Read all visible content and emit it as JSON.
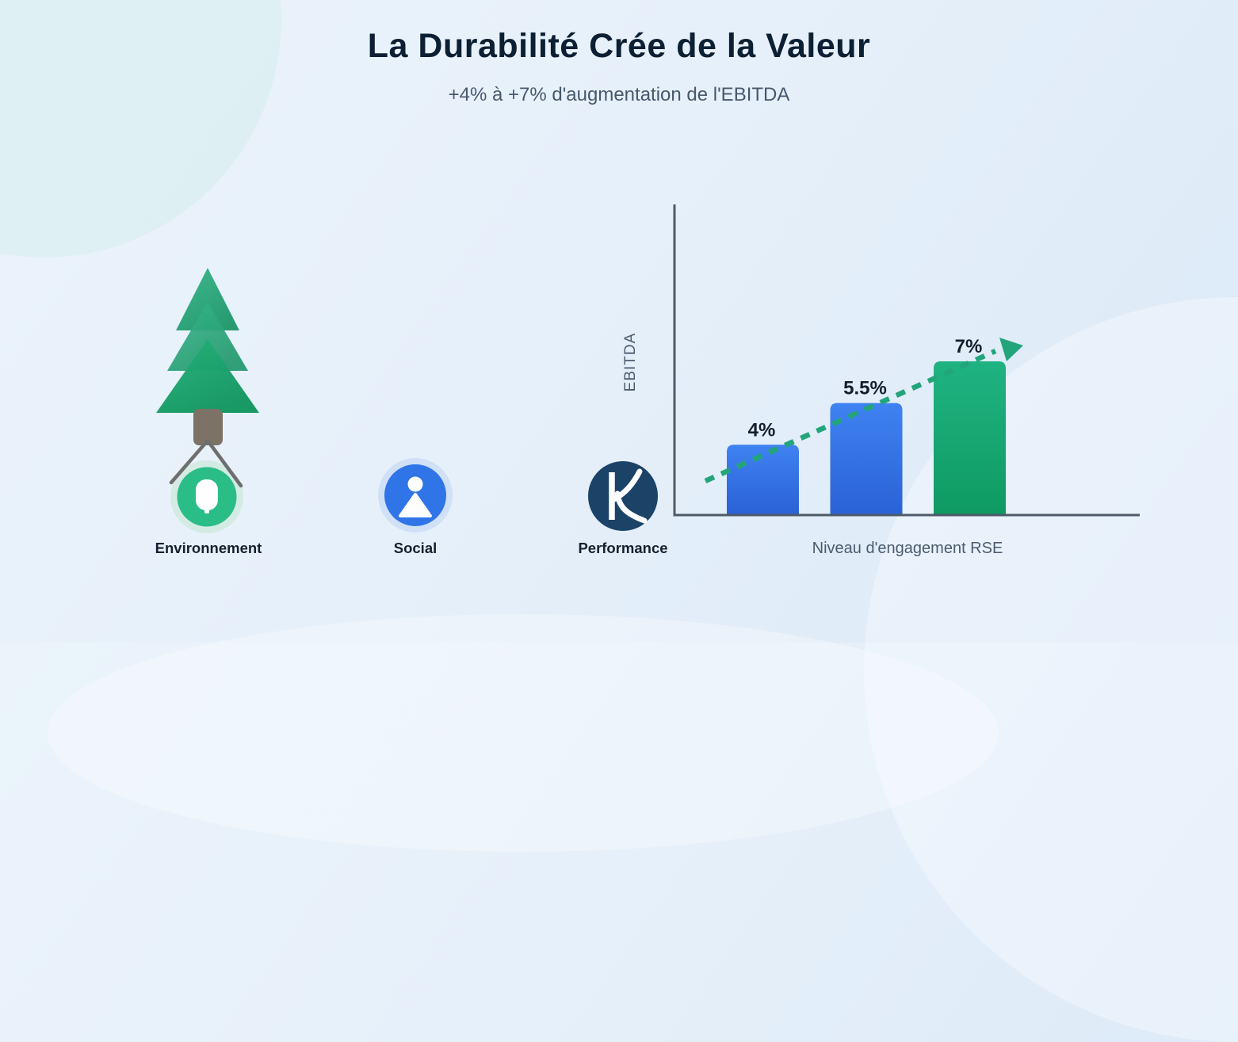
{
  "page": {
    "title": "La Durabilité Crée de la Valeur",
    "subtitle": "+4% à +7% d'augmentation de l'EBITDA"
  },
  "pillars": [
    {
      "label": "Environnement",
      "icon": "tree-icon",
      "accent": "#2abd88"
    },
    {
      "label": "Social",
      "icon": "person-icon",
      "accent": "#2f75e8"
    },
    {
      "label": "Performance",
      "icon": "k-logo-icon",
      "accent": "#1b4368"
    }
  ],
  "chart_data": {
    "type": "bar",
    "values": [
      4,
      5.5,
      7
    ],
    "bar_labels": [
      "4%",
      "5.5%",
      "7%"
    ],
    "bar_colors": [
      "blue",
      "blue",
      "green"
    ],
    "title": "",
    "xlabel": "Niveau d'engagement RSE",
    "ylabel": "EBITDA",
    "ylim": [
      1.5,
      12.9
    ],
    "grid": false,
    "legend": false,
    "trend": {
      "style": "dashed-arrow-up",
      "color": "#23a57b"
    }
  },
  "colors": {
    "background": "#e6f0fa",
    "title_text": "#0d1f33",
    "subtitle_text": "#47586d",
    "bar_blue_top": "#3f82f2",
    "bar_blue_bottom": "#2a62d6",
    "bar_green_top": "#1fb382",
    "bar_green_bottom": "#0f9a62",
    "trend_green": "#23a57b",
    "axis_gray": "#4e5a68",
    "tree_green": "#29a377",
    "trunk_brown": "#7c7265",
    "navy_circle": "#1b4368"
  }
}
